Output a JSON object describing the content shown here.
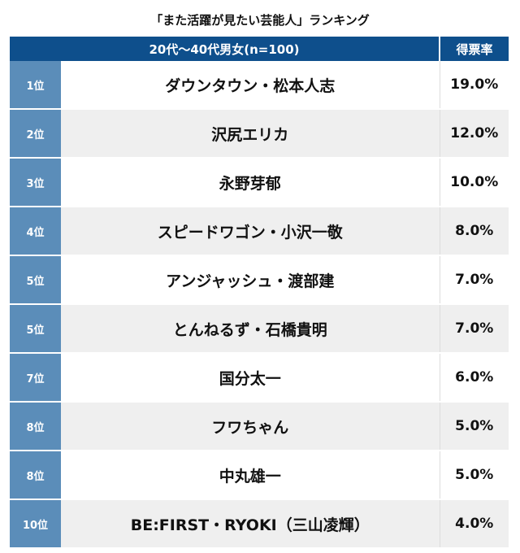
{
  "chart_data": {
    "type": "table",
    "title": "「また活躍が見たい芸能人」ランキング",
    "columns": [
      "20代〜40代男女(n=100)",
      "得票率"
    ],
    "rows": [
      {
        "rank": "1位",
        "name": "ダウンタウン・松本人志",
        "value": "19.0%"
      },
      {
        "rank": "2位",
        "name": "沢尻エリカ",
        "value": "12.0%"
      },
      {
        "rank": "3位",
        "name": "永野芽郁",
        "value": "10.0%"
      },
      {
        "rank": "4位",
        "name": "スピードワゴン・小沢一敬",
        "value": "8.0%"
      },
      {
        "rank": "5位",
        "name": "アンジャッシュ・渡部建",
        "value": "7.0%"
      },
      {
        "rank": "5位",
        "name": "とんねるず・石橋貴明",
        "value": "7.0%"
      },
      {
        "rank": "7位",
        "name": "国分太一",
        "value": "6.0%"
      },
      {
        "rank": "8位",
        "name": "フワちゃん",
        "value": "5.0%"
      },
      {
        "rank": "8位",
        "name": "中丸雄一",
        "value": "5.0%"
      },
      {
        "rank": "10位",
        "name": "BE:FIRST・RYOKI（三山凌輝）",
        "value": "4.0%"
      }
    ],
    "colors": {
      "header": "#0e4f8c",
      "rank_column": "#5b8db9",
      "alt_row": "#efefef"
    }
  }
}
